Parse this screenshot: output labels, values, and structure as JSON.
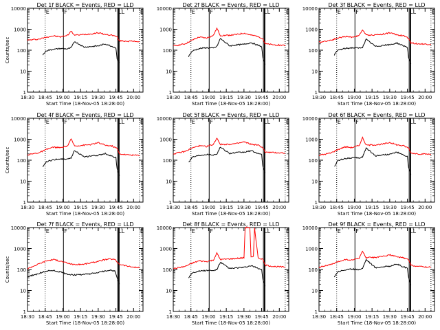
{
  "page": {
    "black_color": "#000000",
    "red_color": "#ff0000",
    "background": "#ffffff"
  },
  "chart_data": [
    {
      "type": "line",
      "title": "Det 1f BLACK = Events, RED = LLD",
      "xlabel": "Start Time (18-Nov-05 18:28:00)",
      "ylabel": "Counts/sec",
      "yscale": "log",
      "ylim": [
        1,
        10000
      ],
      "xlim": [
        "18:30",
        "20:08"
      ],
      "x_ticks": [
        "18:30",
        "18:45",
        "19:00",
        "19:15",
        "19:30",
        "19:45",
        "20:00"
      ],
      "y_ticks": [
        "1",
        "10",
        "100",
        "1000",
        "10000"
      ],
      "annotations": [
        "E",
        "F",
        "LL",
        "E"
      ],
      "series": [
        {
          "color": "#ff0000",
          "x": [
            "18:30",
            "18:40",
            "18:46",
            "18:52",
            "18:58",
            "19:04",
            "19:07",
            "19:10",
            "19:18",
            "19:24",
            "19:30",
            "19:36",
            "19:42",
            "19:46",
            "19:48",
            "19:55",
            "20:05"
          ],
          "values": [
            300,
            340,
            420,
            480,
            430,
            520,
            800,
            520,
            560,
            600,
            680,
            560,
            520,
            430,
            280,
            270,
            260
          ]
        },
        {
          "color": "#000000",
          "x": [
            "18:43",
            "18:46",
            "18:52",
            "18:58",
            "19:04",
            "19:07",
            "19:10",
            "19:18",
            "19:24",
            "19:30",
            "19:36",
            "19:42",
            "19:45",
            "19:46",
            "19:48"
          ],
          "values": [
            60,
            95,
            110,
            120,
            115,
            130,
            260,
            140,
            150,
            160,
            200,
            150,
            130,
            40,
            25
          ]
        }
      ]
    },
    {
      "type": "line",
      "title": "Det 2f BLACK = Events, RED = LLD",
      "xlabel": "Start Time (18-Nov-05 18:28:00)",
      "ylabel": "",
      "yscale": "log",
      "ylim": [
        1,
        10000
      ],
      "xlim": [
        "18:30",
        "20:08"
      ],
      "x_ticks": [
        "18:30",
        "18:45",
        "19:00",
        "19:15",
        "19:30",
        "19:45",
        "20:00"
      ],
      "y_ticks": [
        "1",
        "10",
        "100",
        "1000",
        "10000"
      ],
      "annotations": [
        "E",
        "F",
        "LL",
        "E"
      ],
      "series": [
        {
          "color": "#ff0000",
          "x": [
            "18:30",
            "18:40",
            "18:46",
            "18:52",
            "18:58",
            "19:04",
            "19:07",
            "19:10",
            "19:18",
            "19:24",
            "19:30",
            "19:36",
            "19:42",
            "19:46",
            "19:48",
            "19:55",
            "20:05"
          ],
          "values": [
            160,
            200,
            300,
            420,
            380,
            500,
            1100,
            500,
            520,
            560,
            650,
            520,
            460,
            350,
            200,
            180,
            170
          ]
        },
        {
          "color": "#000000",
          "x": [
            "18:43",
            "18:46",
            "18:52",
            "18:58",
            "19:04",
            "19:07",
            "19:10",
            "19:18",
            "19:24",
            "19:30",
            "19:36",
            "19:42",
            "19:45",
            "19:46",
            "19:48"
          ],
          "values": [
            50,
            90,
            120,
            130,
            125,
            150,
            360,
            160,
            180,
            190,
            230,
            170,
            150,
            45,
            20
          ]
        }
      ]
    },
    {
      "type": "line",
      "title": "Det 3f BLACK = Events, RED = LLD",
      "xlabel": "Start Time (18-Nov-05 18:28:00)",
      "ylabel": "",
      "yscale": "log",
      "ylim": [
        1,
        10000
      ],
      "xlim": [
        "18:30",
        "20:08"
      ],
      "x_ticks": [
        "18:30",
        "18:45",
        "19:00",
        "19:15",
        "19:30",
        "19:45",
        "20:00"
      ],
      "y_ticks": [
        "1",
        "10",
        "100",
        "1000",
        "10000"
      ],
      "annotations": [
        "E",
        "F",
        "LL",
        "E"
      ],
      "series": [
        {
          "color": "#ff0000",
          "x": [
            "18:30",
            "18:40",
            "18:46",
            "18:52",
            "18:58",
            "19:04",
            "19:07",
            "19:10",
            "19:18",
            "19:24",
            "19:30",
            "19:36",
            "19:42",
            "19:46",
            "19:48",
            "19:55",
            "20:05"
          ],
          "values": [
            240,
            300,
            380,
            450,
            420,
            500,
            950,
            520,
            540,
            580,
            680,
            540,
            480,
            380,
            220,
            200,
            190
          ]
        },
        {
          "color": "#000000",
          "x": [
            "18:43",
            "18:46",
            "18:52",
            "18:58",
            "19:04",
            "19:07",
            "19:10",
            "19:18",
            "19:24",
            "19:30",
            "19:36",
            "19:42",
            "19:45",
            "19:46",
            "19:48"
          ],
          "values": [
            60,
            100,
            120,
            130,
            125,
            140,
            330,
            150,
            170,
            180,
            220,
            160,
            140,
            45,
            22
          ]
        }
      ]
    },
    {
      "type": "line",
      "title": "Det 4f BLACK = Events, RED = LLD",
      "xlabel": "Start Time (18-Nov-05 18:28:00)",
      "ylabel": "Counts/sec",
      "yscale": "log",
      "ylim": [
        1,
        10000
      ],
      "xlim": [
        "18:30",
        "20:08"
      ],
      "x_ticks": [
        "18:30",
        "18:45",
        "19:00",
        "19:15",
        "19:30",
        "19:45",
        "20:00"
      ],
      "y_ticks": [
        "1",
        "10",
        "100",
        "1000",
        "10000"
      ],
      "annotations": [
        "E",
        "F",
        "LL",
        "E"
      ],
      "series": [
        {
          "color": "#ff0000",
          "x": [
            "18:30",
            "18:40",
            "18:46",
            "18:52",
            "18:58",
            "19:04",
            "19:07",
            "19:10",
            "19:18",
            "19:24",
            "19:30",
            "19:36",
            "19:42",
            "19:46",
            "19:48",
            "19:55",
            "20:05"
          ],
          "values": [
            180,
            230,
            320,
            420,
            390,
            480,
            1000,
            480,
            520,
            560,
            680,
            520,
            470,
            360,
            200,
            180,
            170
          ]
        },
        {
          "color": "#000000",
          "x": [
            "18:43",
            "18:46",
            "18:52",
            "18:58",
            "19:04",
            "19:07",
            "19:10",
            "19:18",
            "19:24",
            "19:30",
            "19:36",
            "19:42",
            "19:45",
            "19:46",
            "19:48"
          ],
          "values": [
            45,
            85,
            105,
            115,
            110,
            130,
            300,
            140,
            160,
            170,
            210,
            150,
            130,
            40,
            18
          ]
        }
      ]
    },
    {
      "type": "line",
      "title": "Det 5f BLACK = Events, RED = LLD",
      "xlabel": "Start Time (18-Nov-05 18:28:00)",
      "ylabel": "",
      "yscale": "log",
      "ylim": [
        1,
        10000
      ],
      "xlim": [
        "18:30",
        "20:08"
      ],
      "x_ticks": [
        "18:30",
        "18:45",
        "19:00",
        "19:15",
        "19:30",
        "19:45",
        "20:00"
      ],
      "y_ticks": [
        "1",
        "10",
        "100",
        "1000",
        "10000"
      ],
      "annotations": [
        "E",
        "F",
        "LL",
        "E"
      ],
      "series": [
        {
          "color": "#ff0000",
          "x": [
            "18:30",
            "18:40",
            "18:46",
            "18:52",
            "18:58",
            "19:04",
            "19:07",
            "19:10",
            "19:18",
            "19:24",
            "19:30",
            "19:36",
            "19:42",
            "19:46",
            "19:48",
            "19:55",
            "20:05"
          ],
          "values": [
            200,
            260,
            380,
            480,
            450,
            560,
            1150,
            560,
            580,
            620,
            740,
            580,
            520,
            400,
            240,
            230,
            220
          ]
        },
        {
          "color": "#000000",
          "x": [
            "18:43",
            "18:46",
            "18:52",
            "18:58",
            "19:04",
            "19:07",
            "19:10",
            "19:18",
            "19:24",
            "19:30",
            "19:36",
            "19:42",
            "19:45",
            "19:46",
            "19:48"
          ],
          "values": [
            80,
            140,
            170,
            190,
            180,
            200,
            420,
            210,
            230,
            240,
            280,
            210,
            180,
            55,
            25
          ]
        }
      ]
    },
    {
      "type": "line",
      "title": "Det 6f BLACK = Events, RED = LLD",
      "xlabel": "Start Time (18-Nov-05 18:28:00)",
      "ylabel": "",
      "yscale": "log",
      "ylim": [
        1,
        10000
      ],
      "xlim": [
        "18:30",
        "20:08"
      ],
      "x_ticks": [
        "18:30",
        "18:45",
        "19:00",
        "19:15",
        "19:30",
        "19:45",
        "20:00"
      ],
      "y_ticks": [
        "1",
        "10",
        "100",
        "1000",
        "10000"
      ],
      "annotations": [
        "E",
        "F",
        "LL",
        "E"
      ],
      "series": [
        {
          "color": "#ff0000",
          "x": [
            "18:30",
            "18:40",
            "18:46",
            "18:52",
            "18:58",
            "19:04",
            "19:07",
            "19:10",
            "19:18",
            "19:24",
            "19:30",
            "19:36",
            "19:42",
            "19:46",
            "19:48",
            "19:55",
            "20:05"
          ],
          "values": [
            170,
            220,
            320,
            430,
            400,
            500,
            1200,
            520,
            540,
            580,
            700,
            540,
            480,
            380,
            220,
            200,
            190
          ]
        },
        {
          "color": "#000000",
          "x": [
            "18:43",
            "18:46",
            "18:52",
            "18:58",
            "19:04",
            "19:07",
            "19:10",
            "19:18",
            "19:24",
            "19:30",
            "19:36",
            "19:42",
            "19:45",
            "19:46",
            "19:48"
          ],
          "values": [
            50,
            95,
            120,
            130,
            125,
            145,
            380,
            160,
            180,
            190,
            240,
            170,
            150,
            45,
            20
          ]
        }
      ]
    },
    {
      "type": "line",
      "title": "Det 7f BLACK = Events, RED = LLD",
      "xlabel": "Start Time (18-Nov-05 18:28:00)",
      "ylabel": "Counts/sec",
      "yscale": "log",
      "ylim": [
        1,
        10000
      ],
      "xlim": [
        "18:30",
        "20:08"
      ],
      "x_ticks": [
        "18:30",
        "18:45",
        "19:00",
        "19:15",
        "19:30",
        "19:45",
        "20:00"
      ],
      "y_ticks": [
        "1",
        "10",
        "100",
        "1000",
        "10000"
      ],
      "annotations": [
        "E",
        "F",
        "LL",
        "E"
      ],
      "series": [
        {
          "color": "#ff0000",
          "x": [
            "18:30",
            "18:38",
            "18:46",
            "18:52",
            "18:58",
            "19:04",
            "19:10",
            "19:18",
            "19:26",
            "19:34",
            "19:40",
            "19:44",
            "19:48",
            "19:56",
            "20:05"
          ],
          "values": [
            110,
            170,
            260,
            300,
            250,
            200,
            170,
            180,
            220,
            280,
            320,
            300,
            180,
            140,
            120
          ]
        },
        {
          "color": "#000000",
          "x": [
            "18:30",
            "18:38",
            "18:46",
            "18:52",
            "18:58",
            "19:04",
            "19:10",
            "19:18",
            "19:26",
            "19:34",
            "19:40",
            "19:44",
            "19:46",
            "19:48"
          ],
          "values": [
            45,
            60,
            85,
            90,
            75,
            60,
            55,
            58,
            65,
            80,
            95,
            85,
            40,
            20
          ]
        }
      ]
    },
    {
      "type": "line",
      "title": "Det 8f BLACK = Events, RED = LLD",
      "xlabel": "Start Time (18-Nov-05 18:28:00)",
      "ylabel": "",
      "yscale": "log",
      "ylim": [
        1,
        10000
      ],
      "xlim": [
        "18:30",
        "20:08"
      ],
      "x_ticks": [
        "18:30",
        "18:45",
        "19:00",
        "19:15",
        "19:30",
        "19:45",
        "20:00"
      ],
      "y_ticks": [
        "1",
        "10",
        "100",
        "1000",
        "10000"
      ],
      "annotations": [
        "E",
        "F",
        "LL",
        "E"
      ],
      "series": [
        {
          "color": "#ff0000",
          "x": [
            "18:30",
            "18:40",
            "18:46",
            "18:52",
            "18:58",
            "19:04",
            "19:07",
            "19:10",
            "19:18",
            "19:24",
            "19:30",
            "19:31",
            "19:35",
            "19:36",
            "19:38",
            "19:39",
            "19:42",
            "19:46",
            "19:48",
            "19:55",
            "20:05"
          ],
          "values": [
            110,
            140,
            200,
            260,
            240,
            280,
            600,
            300,
            320,
            340,
            360,
            10000,
            10000,
            380,
            400,
            10000,
            360,
            300,
            160,
            140,
            130
          ]
        },
        {
          "color": "#000000",
          "x": [
            "18:43",
            "18:46",
            "18:52",
            "18:58",
            "19:04",
            "19:07",
            "19:10",
            "19:18",
            "19:24",
            "19:30",
            "19:36",
            "19:42",
            "19:45",
            "19:46",
            "19:48"
          ],
          "values": [
            40,
            70,
            85,
            90,
            88,
            100,
            220,
            110,
            120,
            125,
            150,
            115,
            100,
            35,
            16
          ]
        }
      ]
    },
    {
      "type": "line",
      "title": "Det 9f BLACK = Events, RED = LLD",
      "xlabel": "Start Time (18-Nov-05 18:28:00)",
      "ylabel": "",
      "yscale": "log",
      "ylim": [
        1,
        10000
      ],
      "xlim": [
        "18:30",
        "20:08"
      ],
      "x_ticks": [
        "18:30",
        "18:45",
        "19:00",
        "19:15",
        "19:30",
        "19:45",
        "20:00"
      ],
      "y_ticks": [
        "1",
        "10",
        "100",
        "1000",
        "10000"
      ],
      "annotations": [
        "E",
        "F",
        "LL",
        "E"
      ],
      "series": [
        {
          "color": "#ff0000",
          "x": [
            "18:30",
            "18:40",
            "18:46",
            "18:52",
            "18:58",
            "19:04",
            "19:07",
            "19:10",
            "19:18",
            "19:24",
            "19:30",
            "19:36",
            "19:42",
            "19:46",
            "19:48",
            "19:55",
            "20:05"
          ],
          "values": [
            130,
            170,
            230,
            300,
            280,
            350,
            750,
            360,
            380,
            420,
            500,
            400,
            360,
            290,
            160,
            140,
            130
          ]
        },
        {
          "color": "#000000",
          "x": [
            "18:43",
            "18:46",
            "18:52",
            "18:58",
            "19:04",
            "19:07",
            "19:10",
            "19:18",
            "19:24",
            "19:30",
            "19:36",
            "19:42",
            "19:45",
            "19:46",
            "19:48"
          ],
          "values": [
            45,
            80,
            95,
            105,
            100,
            115,
            300,
            120,
            135,
            145,
            180,
            130,
            115,
            40,
            18
          ]
        }
      ]
    }
  ]
}
